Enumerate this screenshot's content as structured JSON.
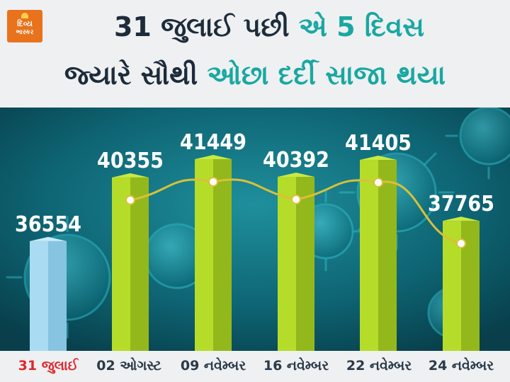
{
  "header": {
    "logo_top": "દિવ્ય",
    "logo_bottom": "ભાસ્કર",
    "title_line1_dark": "31 જુલાઈ પછી ",
    "title_line1_teal": "એ 5 દિવસ",
    "title_line2_dark": "જ્યારે સૌથી ",
    "title_line2_teal": "ઓછા દર્દી સાજા થયા"
  },
  "colors": {
    "bar_highlight": "#a9dcf3",
    "bar_default": "#b6dc2a",
    "trend_line": "#d9c03a",
    "label_highlight": "#e0262b",
    "label_default": "#2a3a48",
    "background_panel": "#0d5866"
  },
  "chart_data": {
    "type": "bar",
    "title": "31 જુલાઈ પછી એ 5 દિવસ જ્યારે સૌથી ઓછા દર્દી સાજા થયા",
    "categories": [
      "31 જુલાઈ",
      "02 ઓગસ્ટ",
      "09 નવેમ્બર",
      "16 નવેમ્બર",
      "22 નવેમ્બર",
      "24 નવેમ્બર"
    ],
    "values": [
      36554,
      40355,
      41449,
      40392,
      41405,
      37765
    ],
    "value_labels": [
      "36554",
      "40355",
      "41449",
      "40392",
      "41405",
      "37765"
    ],
    "highlight_index": 0,
    "trend_line": "curve through bars 2–6",
    "ylim": [
      0,
      45000
    ],
    "grid": false,
    "legend": "none"
  }
}
